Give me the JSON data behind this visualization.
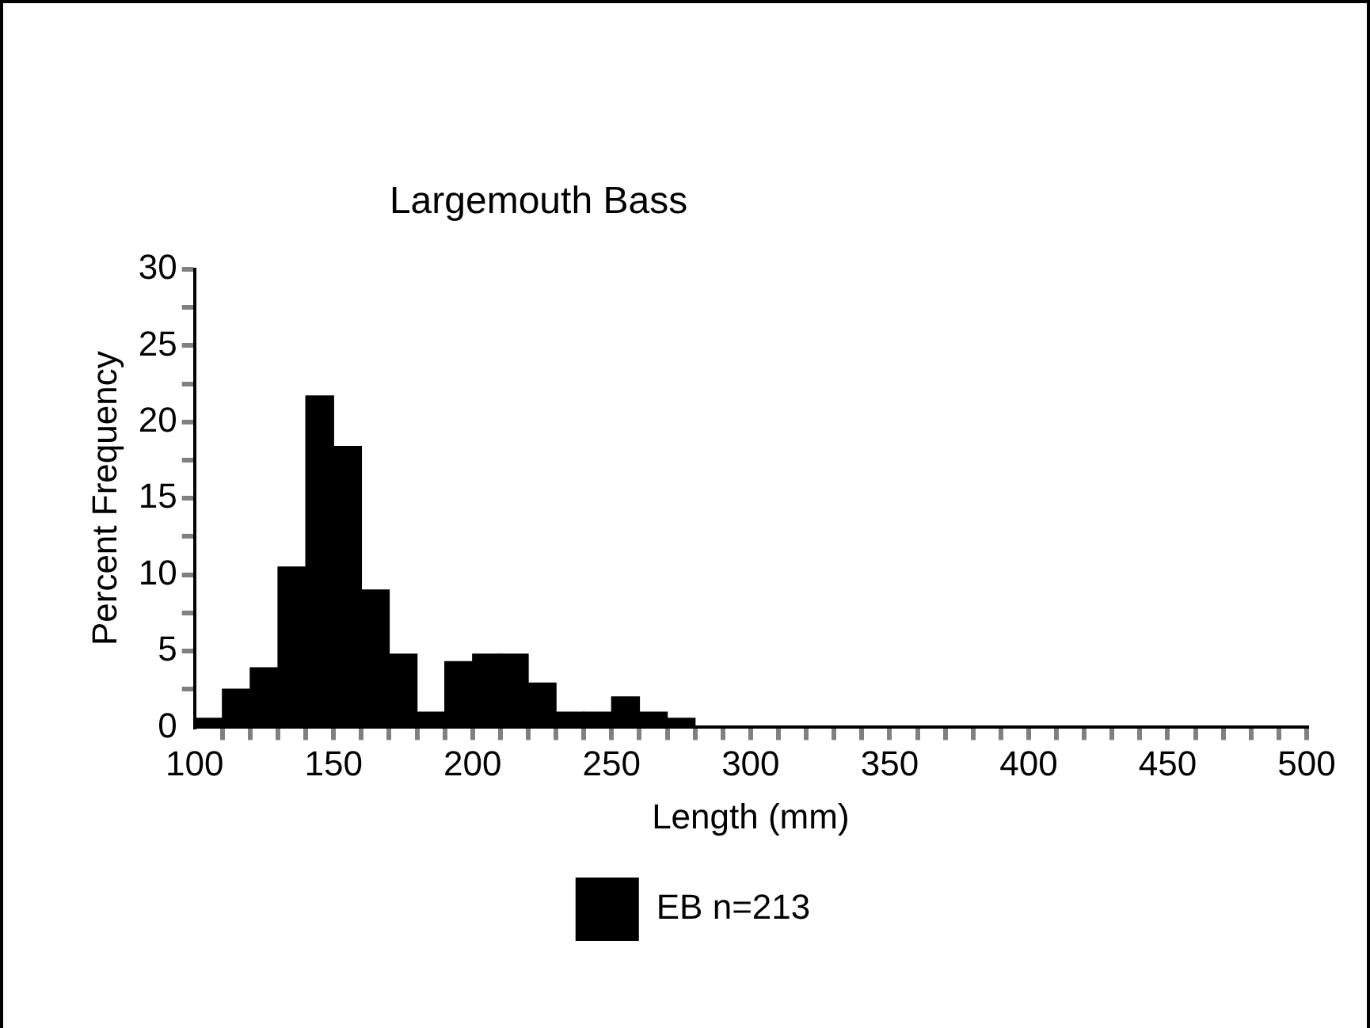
{
  "chart_data": {
    "type": "histogram",
    "title": "Largemouth Bass",
    "xlabel": "Length (mm)",
    "ylabel": "Percent Frequency",
    "bins": [
      100,
      110,
      120,
      130,
      140,
      150,
      160,
      170,
      180,
      190,
      200,
      210,
      220,
      230,
      240,
      250,
      260,
      270,
      280,
      290,
      300,
      310,
      320,
      330,
      340,
      350,
      360,
      370,
      380,
      390,
      400,
      410,
      420,
      430,
      440,
      450,
      460,
      470,
      480,
      490,
      500
    ],
    "series": [
      {
        "name": "EB n=213",
        "color": "#000000",
        "values": [
          0.6,
          2.5,
          3.9,
          10.5,
          21.7,
          18.4,
          9.0,
          4.8,
          1.0,
          4.3,
          4.8,
          4.8,
          2.9,
          1.0,
          1.0,
          2.0,
          1.0,
          0.6,
          0,
          0,
          0,
          0,
          0,
          0,
          0,
          0,
          0,
          0,
          0,
          0,
          0,
          0,
          0,
          0,
          0,
          0,
          0,
          0,
          0,
          0
        ]
      }
    ],
    "xlim": [
      100,
      500
    ],
    "xticks": [
      100,
      {
        "value": 110,
        "label": null
      },
      {
        "value": 120,
        "label": null
      },
      {
        "value": 130,
        "label": null
      },
      {
        "value": 140,
        "label": null
      },
      150,
      {
        "value": 160,
        "label": null
      },
      {
        "value": 170,
        "label": null
      },
      {
        "value": 180,
        "label": null
      },
      {
        "value": 190,
        "label": null
      },
      200,
      {
        "value": 210,
        "label": null
      },
      {
        "value": 220,
        "label": null
      },
      {
        "value": 230,
        "label": null
      },
      {
        "value": 240,
        "label": null
      },
      250,
      {
        "value": 260,
        "label": null
      },
      {
        "value": 270,
        "label": null
      },
      {
        "value": 280,
        "label": null
      },
      {
        "value": 290,
        "label": null
      },
      300,
      {
        "value": 310,
        "label": null
      },
      {
        "value": 320,
        "label": null
      },
      {
        "value": 330,
        "label": null
      },
      {
        "value": 340,
        "label": null
      },
      350,
      {
        "value": 360,
        "label": null
      },
      {
        "value": 370,
        "label": null
      },
      {
        "value": 380,
        "label": null
      },
      {
        "value": 390,
        "label": null
      },
      400,
      {
        "value": 410,
        "label": null
      },
      {
        "value": 420,
        "label": null
      },
      {
        "value": 430,
        "label": null
      },
      {
        "value": 440,
        "label": null
      },
      450,
      {
        "value": 460,
        "label": null
      },
      {
        "value": 470,
        "label": null
      },
      {
        "value": 480,
        "label": null
      },
      {
        "value": 490,
        "label": null
      },
      500
    ],
    "ylim": [
      0,
      30
    ],
    "yticks": [
      0,
      {
        "value": 2.5,
        "label": null
      },
      5,
      {
        "value": 7.5,
        "label": null
      },
      10,
      {
        "value": 12.5,
        "label": null
      },
      15,
      {
        "value": 17.5,
        "label": null
      },
      20,
      {
        "value": 22.5,
        "label": null
      },
      25,
      {
        "value": 27.5,
        "label": null
      },
      30
    ],
    "grid": false,
    "legend": "bottom"
  }
}
